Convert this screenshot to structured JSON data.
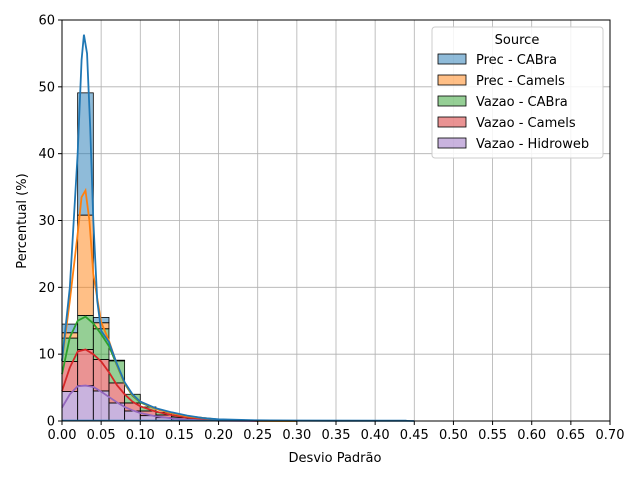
{
  "chart_data": {
    "type": "bar",
    "title": "",
    "xlabel": "Desvio Padrão",
    "ylabel": "Percentual (%)",
    "xlim": [
      0,
      0.7
    ],
    "ylim": [
      0,
      60
    ],
    "x_ticks": [
      "0.00",
      "0.05",
      "0.10",
      "0.15",
      "0.20",
      "0.25",
      "0.30",
      "0.35",
      "0.40",
      "0.45",
      "0.50",
      "0.55",
      "0.60",
      "0.65",
      "0.70"
    ],
    "y_ticks": [
      "0",
      "10",
      "20",
      "30",
      "40",
      "50",
      "60"
    ],
    "grid": true,
    "legend": {
      "title": "Source",
      "placement": "top-right"
    },
    "stacked": true,
    "bin_width": 0.02,
    "bin_edges": [
      0.0,
      0.02,
      0.04,
      0.06,
      0.08,
      0.1,
      0.12,
      0.14,
      0.16,
      0.18
    ],
    "series": [
      {
        "name": "Vazao - Hidroweb",
        "color": "#9467bd",
        "values": [
          4.4,
          5.3,
          4.5,
          2.7,
          1.5,
          0.8,
          0.5,
          0.3,
          0.1
        ],
        "kde": [
          [
            0,
            2.0
          ],
          [
            0.01,
            4.0
          ],
          [
            0.02,
            5.2
          ],
          [
            0.03,
            5.3
          ],
          [
            0.04,
            5.1
          ],
          [
            0.05,
            4.4
          ],
          [
            0.06,
            3.6
          ],
          [
            0.07,
            2.8
          ],
          [
            0.08,
            2.1
          ],
          [
            0.09,
            1.6
          ],
          [
            0.1,
            1.2
          ],
          [
            0.12,
            0.7
          ],
          [
            0.14,
            0.4
          ],
          [
            0.16,
            0.2
          ],
          [
            0.2,
            0.05
          ],
          [
            0.25,
            0.0
          ]
        ]
      },
      {
        "name": "Vazao - Camels",
        "color": "#d62728",
        "values": [
          4.5,
          5.4,
          4.7,
          3.0,
          1.2,
          0.7,
          0.4,
          0.2,
          0.1
        ],
        "kde": [
          [
            0,
            4.5
          ],
          [
            0.01,
            8.0
          ],
          [
            0.02,
            10.4
          ],
          [
            0.03,
            10.7
          ],
          [
            0.04,
            10.0
          ],
          [
            0.05,
            8.9
          ],
          [
            0.06,
            7.3
          ],
          [
            0.07,
            5.4
          ],
          [
            0.08,
            4.0
          ],
          [
            0.09,
            2.9
          ],
          [
            0.1,
            2.2
          ],
          [
            0.12,
            1.4
          ],
          [
            0.14,
            0.9
          ],
          [
            0.16,
            0.5
          ],
          [
            0.2,
            0.15
          ],
          [
            0.25,
            0.03
          ],
          [
            0.3,
            0.0
          ]
        ]
      },
      {
        "name": "Vazao - CABra",
        "color": "#2ca02c",
        "values": [
          3.5,
          5.1,
          4.6,
          3.3,
          1.3,
          0.6,
          0.4,
          0.2,
          0.1
        ],
        "kde": [
          [
            0,
            7.0
          ],
          [
            0.01,
            12.5
          ],
          [
            0.02,
            15.0
          ],
          [
            0.03,
            15.6
          ],
          [
            0.04,
            14.6
          ],
          [
            0.05,
            13.0
          ],
          [
            0.06,
            11.2
          ],
          [
            0.07,
            8.4
          ],
          [
            0.08,
            5.6
          ],
          [
            0.09,
            3.8
          ],
          [
            0.1,
            2.8
          ],
          [
            0.12,
            1.8
          ],
          [
            0.14,
            1.2
          ],
          [
            0.16,
            0.7
          ],
          [
            0.2,
            0.2
          ],
          [
            0.25,
            0.05
          ],
          [
            0.3,
            0.0
          ]
        ]
      },
      {
        "name": "Prec - Camels",
        "color": "#ff7f0e",
        "values": [
          0.8,
          15.0,
          0.9,
          0.1,
          0.0,
          0.0,
          0.0,
          0.0,
          0.0
        ],
        "kde": [
          [
            0,
            9.0
          ],
          [
            0.01,
            18.0
          ],
          [
            0.02,
            28.0
          ],
          [
            0.025,
            33.5
          ],
          [
            0.03,
            34.5
          ],
          [
            0.035,
            30.0
          ],
          [
            0.04,
            22.0
          ],
          [
            0.05,
            14.8
          ],
          [
            0.06,
            12.0
          ],
          [
            0.07,
            8.5
          ],
          [
            0.08,
            5.7
          ],
          [
            0.09,
            3.9
          ],
          [
            0.1,
            2.9
          ],
          [
            0.12,
            1.8
          ],
          [
            0.14,
            1.2
          ],
          [
            0.16,
            0.7
          ],
          [
            0.2,
            0.2
          ],
          [
            0.25,
            0.05
          ],
          [
            0.3,
            0.0
          ]
        ]
      },
      {
        "name": "Prec - CABra",
        "color": "#1f77b4",
        "values": [
          1.3,
          18.3,
          0.8,
          0.0,
          0.0,
          0.0,
          0.0,
          0.0,
          0.0
        ],
        "kde": [
          [
            0,
            9.0
          ],
          [
            0.01,
            20.0
          ],
          [
            0.02,
            40.0
          ],
          [
            0.025,
            54.0
          ],
          [
            0.028,
            57.8
          ],
          [
            0.032,
            55.0
          ],
          [
            0.036,
            44.0
          ],
          [
            0.04,
            30.0
          ],
          [
            0.045,
            18.0
          ],
          [
            0.05,
            13.5
          ],
          [
            0.06,
            11.8
          ],
          [
            0.07,
            8.6
          ],
          [
            0.08,
            5.8
          ],
          [
            0.09,
            4.0
          ],
          [
            0.1,
            2.9
          ],
          [
            0.12,
            1.9
          ],
          [
            0.14,
            1.3
          ],
          [
            0.16,
            0.8
          ],
          [
            0.18,
            0.45
          ],
          [
            0.2,
            0.25
          ],
          [
            0.25,
            0.1
          ],
          [
            0.3,
            0.05
          ],
          [
            0.35,
            0.03
          ],
          [
            0.4,
            0.02
          ],
          [
            0.44,
            0.02
          ],
          [
            0.45,
            0.0
          ]
        ]
      }
    ],
    "legend_order": [
      "Prec - CABra",
      "Prec - Camels",
      "Vazao - CABra",
      "Vazao - Camels",
      "Vazao - Hidroweb"
    ],
    "baseline_extent": [
      0.0,
      0.44
    ]
  }
}
